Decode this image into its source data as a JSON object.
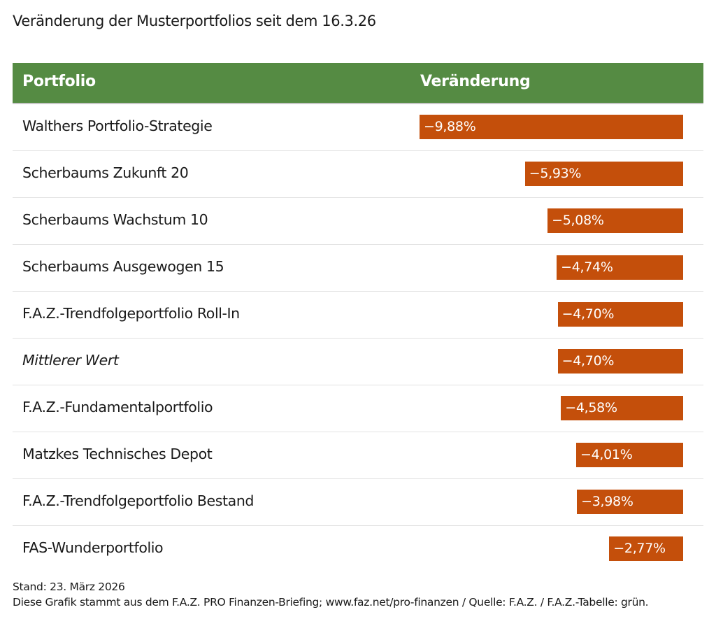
{
  "title": "Veränderung der Musterportfolios seit dem 16.3.26",
  "colors": {
    "header": "#558b43",
    "bar": "#c44f0b"
  },
  "chart_data": {
    "type": "bar",
    "orientation": "horizontal",
    "columns": [
      "Portfolio",
      "Veränderung"
    ],
    "categories": [
      "Walthers Portfolio-Strategie",
      "Scherbaums Zukunft 20",
      "Scherbaums Wachstum 10",
      "Scherbaums Ausgewogen 15",
      "F.A.Z.-Trendfolgeportfolio Roll-In",
      "Mittlerer Wert",
      "F.A.Z.-Fundamentalportfolio",
      "Matzkes Technisches Depot",
      "F.A.Z.-Trendfolgeportfolio Bestand",
      "FAS-Wunderportfolio"
    ],
    "values": [
      -9.88,
      -5.93,
      -5.08,
      -4.74,
      -4.7,
      -4.7,
      -4.58,
      -4.01,
      -3.98,
      -2.77
    ],
    "labels": [
      "−9,88%",
      "−5,93%",
      "−5,08%",
      "−4,74%",
      "−4,70%",
      "−4,70%",
      "−4,58%",
      "−4,01%",
      "−3,98%",
      "−2,77%"
    ],
    "italic": [
      false,
      false,
      false,
      false,
      false,
      true,
      false,
      false,
      false,
      false
    ],
    "unit": "%"
  },
  "footer": {
    "stand": "Stand: 23. März 2026",
    "source": "Diese Grafik stammt aus dem F.A.Z. PRO Finanzen-Briefing; www.faz.net/pro-finanzen  / Quelle: F.A.Z.  / F.A.Z.-Tabelle: grün."
  }
}
